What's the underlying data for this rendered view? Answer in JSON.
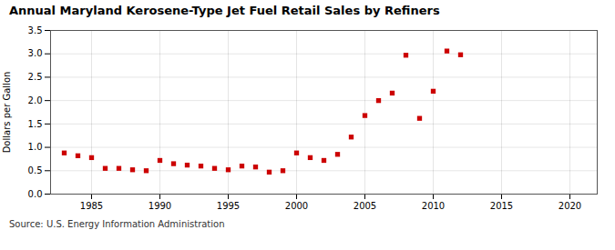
{
  "chart_data": {
    "type": "scatter",
    "title": "Annual Maryland Kerosene-Type Jet Fuel Retail Sales by Refiners",
    "ylabel": "Dollars per Gallon",
    "annotations": [
      "Source: U.S. Energy Information Administration"
    ],
    "x": [
      1983,
      1984,
      1985,
      1986,
      1987,
      1988,
      1989,
      1990,
      1991,
      1992,
      1993,
      1994,
      1995,
      1996,
      1997,
      1998,
      1999,
      2000,
      2001,
      2002,
      2003,
      2004,
      2005,
      2006,
      2007,
      2008,
      2009,
      2010,
      2011,
      2012
    ],
    "values": [
      0.88,
      0.82,
      0.78,
      0.55,
      0.55,
      0.52,
      0.5,
      0.72,
      0.65,
      0.62,
      0.6,
      0.55,
      0.52,
      0.6,
      0.58,
      0.47,
      0.5,
      0.88,
      0.78,
      0.72,
      0.85,
      1.22,
      1.68,
      2.0,
      2.16,
      2.97,
      1.62,
      2.2,
      3.06,
      2.98
    ],
    "color": "#cc0000",
    "marker": "square",
    "xlim": [
      1982,
      2022
    ],
    "ylim": [
      0.0,
      3.5
    ],
    "xticks": [
      1985,
      1990,
      1995,
      2000,
      2005,
      2010,
      2015,
      2020
    ],
    "yticks": [
      {
        "value": 0.0,
        "label": "0.0"
      },
      0.5,
      {
        "value": 1.0,
        "label": "1.0"
      },
      1.5,
      {
        "value": 2.0,
        "label": "2.0"
      },
      2.5,
      {
        "value": 3.0,
        "label": "3.0"
      },
      3.5
    ],
    "grid": true
  }
}
